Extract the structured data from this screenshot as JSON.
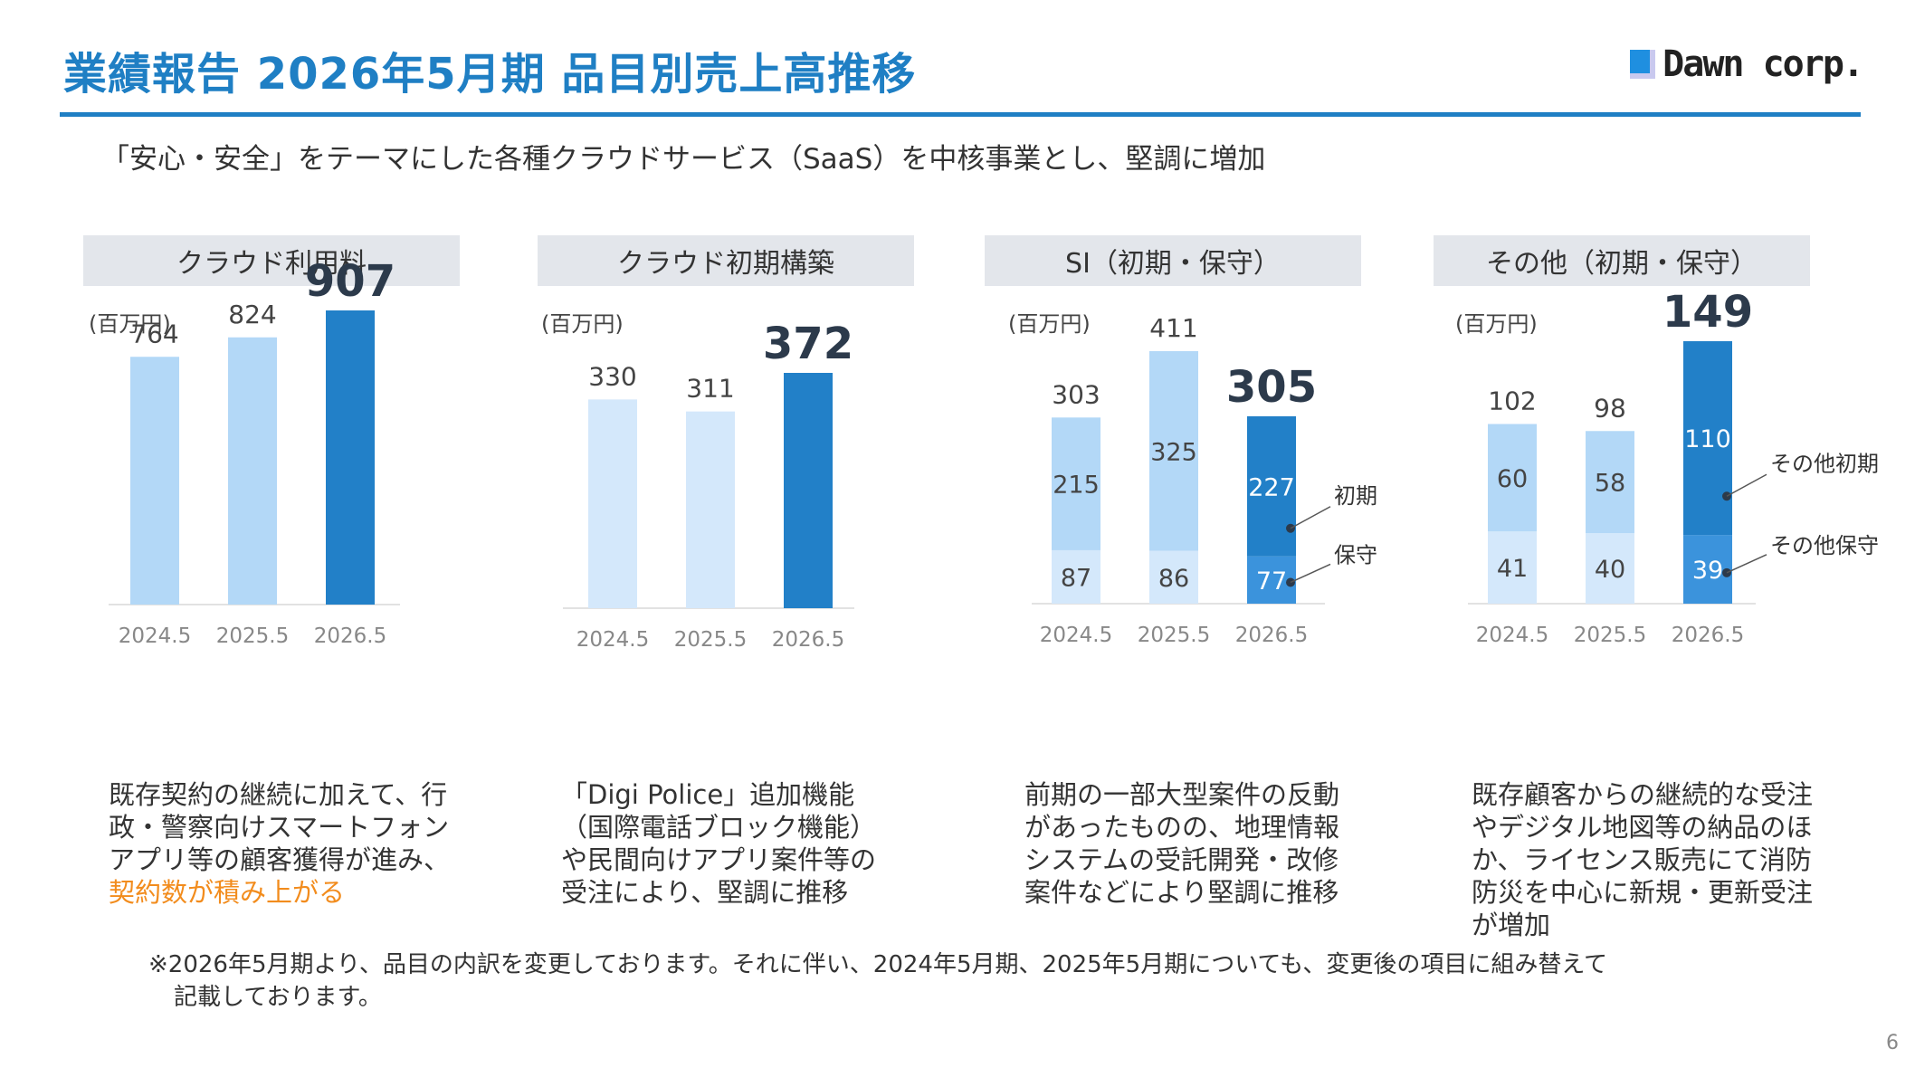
{
  "header": {
    "title": "業績報告 2026年5月期 品目別売上高推移",
    "logo_text": "Dawn corp.",
    "subtitle": "「安心・安全」をテーマにした各種クラウドサービス（SaaS）を中核事業とし、堅調に増加"
  },
  "colors": {
    "accent": "#1f7fc4",
    "bar_light": "#b3d8f7",
    "bar_dark": "#2280c8",
    "bar_dark_bottom": "#3b93dc",
    "bar_pale": "#d4e8fb",
    "highlight_text": "#f28c1d"
  },
  "panels": [
    {
      "label": "クラウド利用料",
      "unit": "(百万円)",
      "desc_lines": [
        "既存契約の継続に加えて、行",
        "政・警察向けスマートフォン",
        "アプリ等の顧客獲得が進み、"
      ],
      "desc_highlight": "契約数が積み上がる"
    },
    {
      "label": "クラウド初期構築",
      "unit": "(百万円)",
      "desc_lines": [
        "「Digi Police」追加機能",
        "（国際電話ブロック機能）",
        "や民間向けアプリ案件等の",
        "受注により、堅調に推移"
      ],
      "desc_highlight": ""
    },
    {
      "label": "SI（初期・保守）",
      "unit": "(百万円)",
      "desc_lines": [
        "前期の一部大型案件の反動",
        "があったものの、地理情報",
        "システムの受託開発・改修",
        "案件などにより堅調に推移"
      ],
      "desc_highlight": ""
    },
    {
      "label": "その他（初期・保守）",
      "unit": "(百万円)",
      "desc_lines": [
        "既存顧客からの継続的な受注",
        "やデジタル地図等の納品のほ",
        "か、ライセンス販売にて消防",
        "防災を中心に新規・更新受注",
        "が増加"
      ],
      "desc_highlight": ""
    }
  ],
  "chart_data": [
    {
      "type": "bar",
      "title": "クラウド利用料",
      "ylabel": "(百万円)",
      "categories": [
        "2024.5",
        "2025.5",
        "2026.5"
      ],
      "values": [
        764,
        824,
        907
      ],
      "ylim": [
        0,
        907
      ]
    },
    {
      "type": "bar",
      "title": "クラウド初期構築",
      "ylabel": "(百万円)",
      "categories": [
        "2024.5",
        "2025.5",
        "2026.5"
      ],
      "values": [
        330,
        311,
        372
      ],
      "ylim": [
        0,
        372
      ]
    },
    {
      "type": "bar",
      "stacked": true,
      "title": "SI（初期・保守）",
      "ylabel": "(百万円)",
      "categories": [
        "2024.5",
        "2025.5",
        "2026.5"
      ],
      "totals": [
        303,
        411,
        305
      ],
      "series": [
        {
          "name": "保守",
          "values": [
            87,
            86,
            77
          ]
        },
        {
          "name": "初期",
          "values": [
            215,
            325,
            227
          ]
        }
      ],
      "ylim": [
        0,
        411
      ]
    },
    {
      "type": "bar",
      "stacked": true,
      "title": "その他（初期・保守）",
      "ylabel": "(百万円)",
      "categories": [
        "2024.5",
        "2025.5",
        "2026.5"
      ],
      "totals": [
        102,
        98,
        149
      ],
      "series": [
        {
          "name": "その他保守",
          "values": [
            41,
            40,
            39
          ]
        },
        {
          "name": "その他初期",
          "values": [
            60,
            58,
            110
          ]
        }
      ],
      "ylim": [
        0,
        149
      ]
    }
  ],
  "footnote": {
    "line1": "※2026年5月期より、品目の内訳を変更しております。それに伴い、2024年5月期、2025年5月期についても、変更後の項目に組み替えて",
    "line2": "記載しております。"
  },
  "page_number": "6"
}
